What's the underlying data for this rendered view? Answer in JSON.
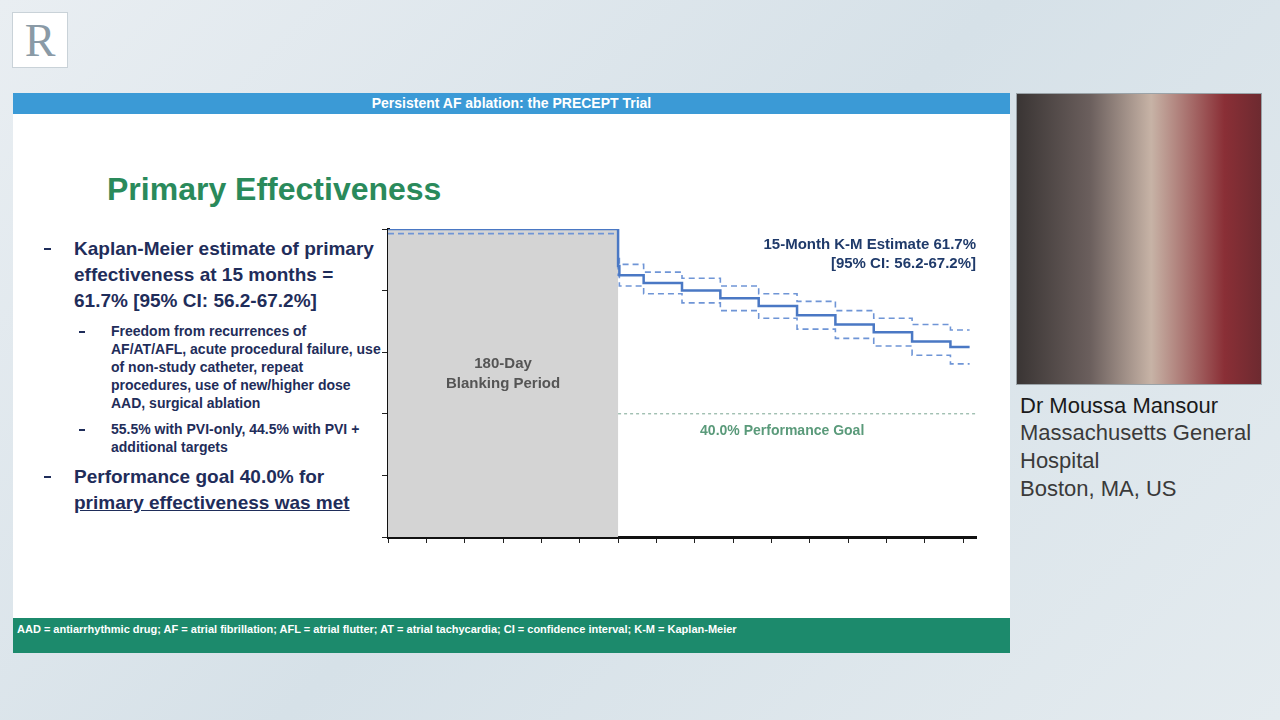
{
  "logo": "R",
  "header": "Persistent AF ablation: the PRECEPT Trial",
  "title": "Primary Effectiveness",
  "bullets": [
    {
      "text": "Kaplan-Meier estimate of primary effectiveness at 15 months = 61.7% [95% CI: 56.2-67.2%]",
      "sub": [
        "Freedom from recurrences of AF/AT/AFL, acute procedural failure, use of non-study catheter, repeat procedures, use of new/higher dose AAD, surgical ablation",
        "55.5% with PVI-only, 44.5% with PVI + additional targets"
      ]
    },
    {
      "text": "Performance goal 40.0% for primary effectiveness was met",
      "underlined": "primary effectiveness was met"
    }
  ],
  "footnote": "AAD = antiarrhythmic drug; AF = atrial fibrillation; AFL = atrial flutter; AT = atrial tachycardia; CI = confidence interval; K-M = Kaplan-Meier",
  "speaker": {
    "name": "Dr Moussa Mansour",
    "affiliation": [
      "Massachusetts General Hospital",
      "Boston, MA, US"
    ]
  },
  "chart_data": {
    "type": "step",
    "x": [
      0,
      30,
      60,
      90,
      120,
      150,
      180,
      181,
      200,
      230,
      260,
      290,
      320,
      350,
      380,
      410,
      440,
      455
    ],
    "series": [
      {
        "color": "#4a78c4",
        "line_style": "solid",
        "values": [
          100,
          100,
          100,
          100,
          100,
          100,
          100,
          88,
          85,
          82.5,
          80,
          77.5,
          75,
          72,
          69,
          66.5,
          63.5,
          61.7
        ]
      },
      {
        "color": "#6f95d6",
        "line_style": "dashed",
        "values": [
          100,
          100,
          100,
          100,
          100,
          100,
          100,
          91,
          88.5,
          86,
          84,
          81.5,
          79,
          76.5,
          73.5,
          71,
          69,
          67.2
        ]
      },
      {
        "color": "#6f95d6",
        "line_style": "dashed",
        "values": [
          98.5,
          98.5,
          98.5,
          98.5,
          98.5,
          98.5,
          98.5,
          85,
          81.5,
          79,
          76,
          73.5,
          71,
          67.5,
          64.5,
          62,
          59,
          56.2
        ]
      }
    ],
    "xlim": [
      0,
      460
    ],
    "xticks": [
      0,
      30,
      60,
      90,
      120,
      150,
      180,
      210,
      240,
      270,
      300,
      330,
      360,
      390,
      420,
      450
    ],
    "ylim": [
      0,
      100
    ],
    "yticks": [
      0,
      20,
      40,
      60,
      80,
      100
    ],
    "grid": false,
    "tick_labels": false,
    "annotation": [
      "15-Month K-M Estimate 61.7%",
      "[95% CI: 56.2-67.2%]"
    ],
    "shaded_region": {
      "x": [
        0,
        180
      ],
      "label": [
        "180-Day",
        "Blanking Period"
      ]
    },
    "reference_line": {
      "y": 40,
      "label": "40.0% Performance Goal"
    }
  }
}
